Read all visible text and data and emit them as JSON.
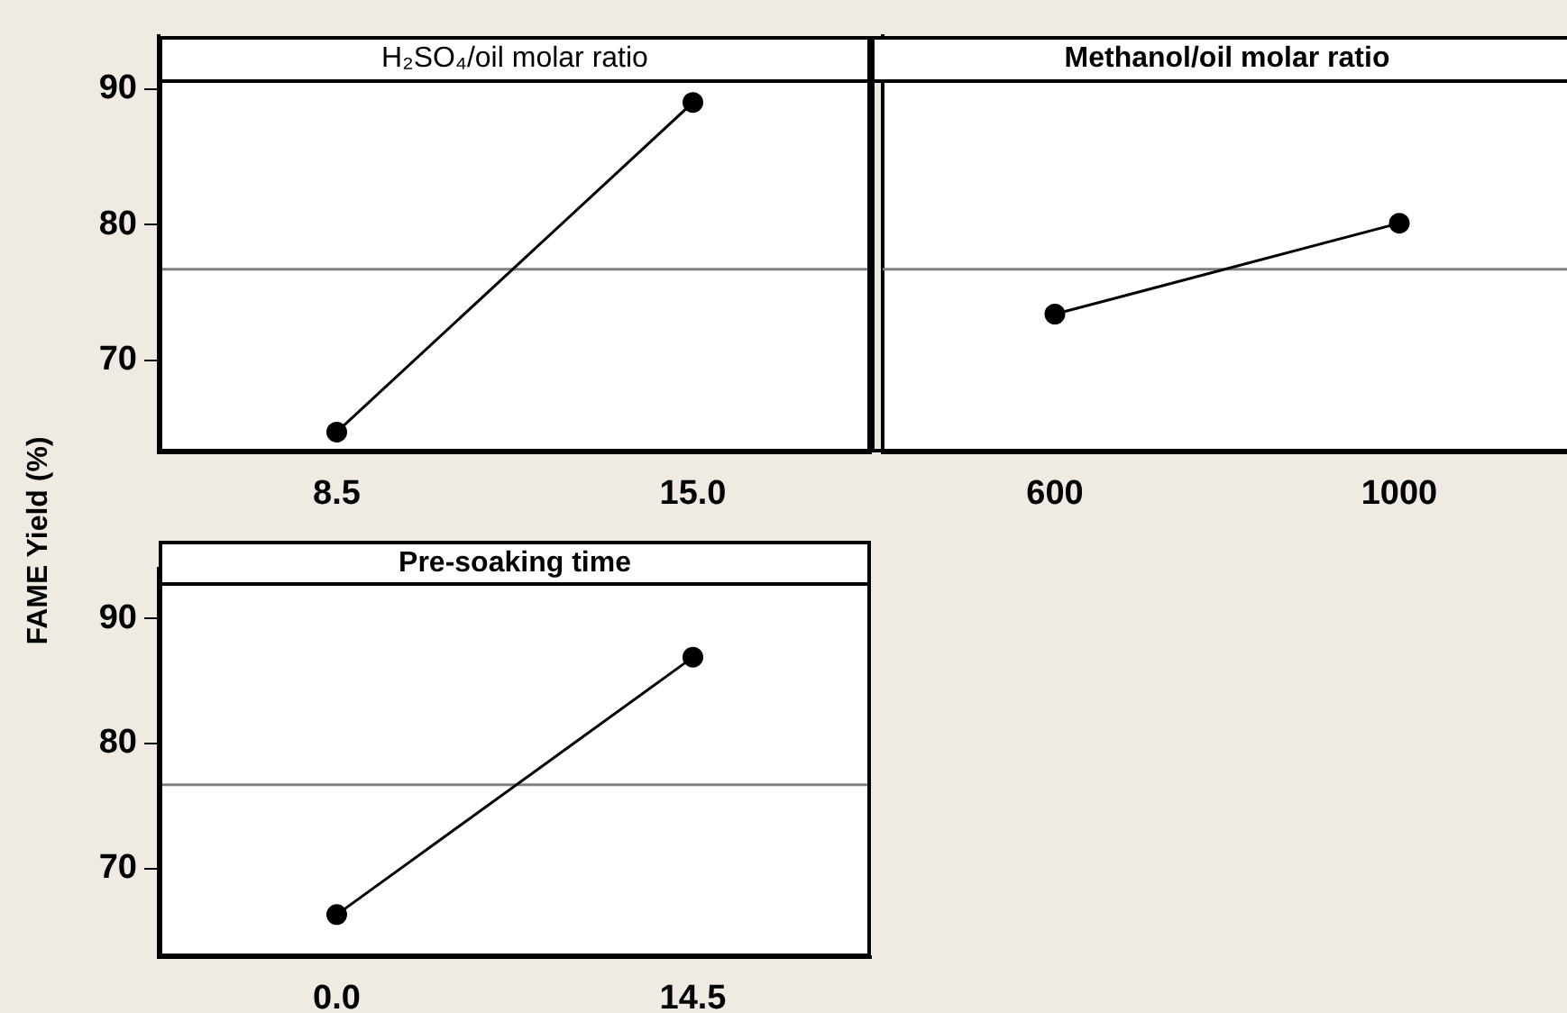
{
  "chart_data": [
    {
      "type": "line",
      "title": "H₂SO₄/oil molar ratio",
      "ylabel": "FAME Yield (%)",
      "categories": [
        "8.5",
        "15.0"
      ],
      "series": [
        {
          "color": "#000000",
          "values": [
            64.7,
            89.0
          ]
        }
      ],
      "ylim": [
        63.2,
        93.9
      ],
      "yticks": [
        70,
        80,
        90
      ],
      "ref_lines": [
        {
          "axis": "y",
          "value": 76.7,
          "color": "#808080"
        }
      ],
      "marker": "circle",
      "grid": false,
      "legend": false
    },
    {
      "type": "line",
      "title": "Methanol/oil molar ratio",
      "categories": [
        "600",
        "1000"
      ],
      "series": [
        {
          "color": "#000000",
          "values": [
            73.4,
            80.1
          ]
        }
      ],
      "ylim": [
        63.2,
        93.9
      ],
      "yticks": [
        70,
        80,
        90
      ],
      "ref_lines": [
        {
          "axis": "y",
          "value": 76.7,
          "color": "#808080"
        }
      ],
      "marker": "circle",
      "grid": false,
      "legend": false,
      "tick_labels": "x"
    },
    {
      "type": "line",
      "title": "Pre-soaking time",
      "categories": [
        "0.0",
        "14.5"
      ],
      "series": [
        {
          "color": "#000000",
          "values": [
            66.3,
            86.9
          ]
        }
      ],
      "ylim": [
        62.9,
        94.0
      ],
      "yticks": [
        70,
        80,
        90
      ],
      "ref_lines": [
        {
          "axis": "y",
          "value": 76.7,
          "color": "#808080"
        }
      ],
      "marker": "circle",
      "grid": false,
      "legend": false
    }
  ]
}
